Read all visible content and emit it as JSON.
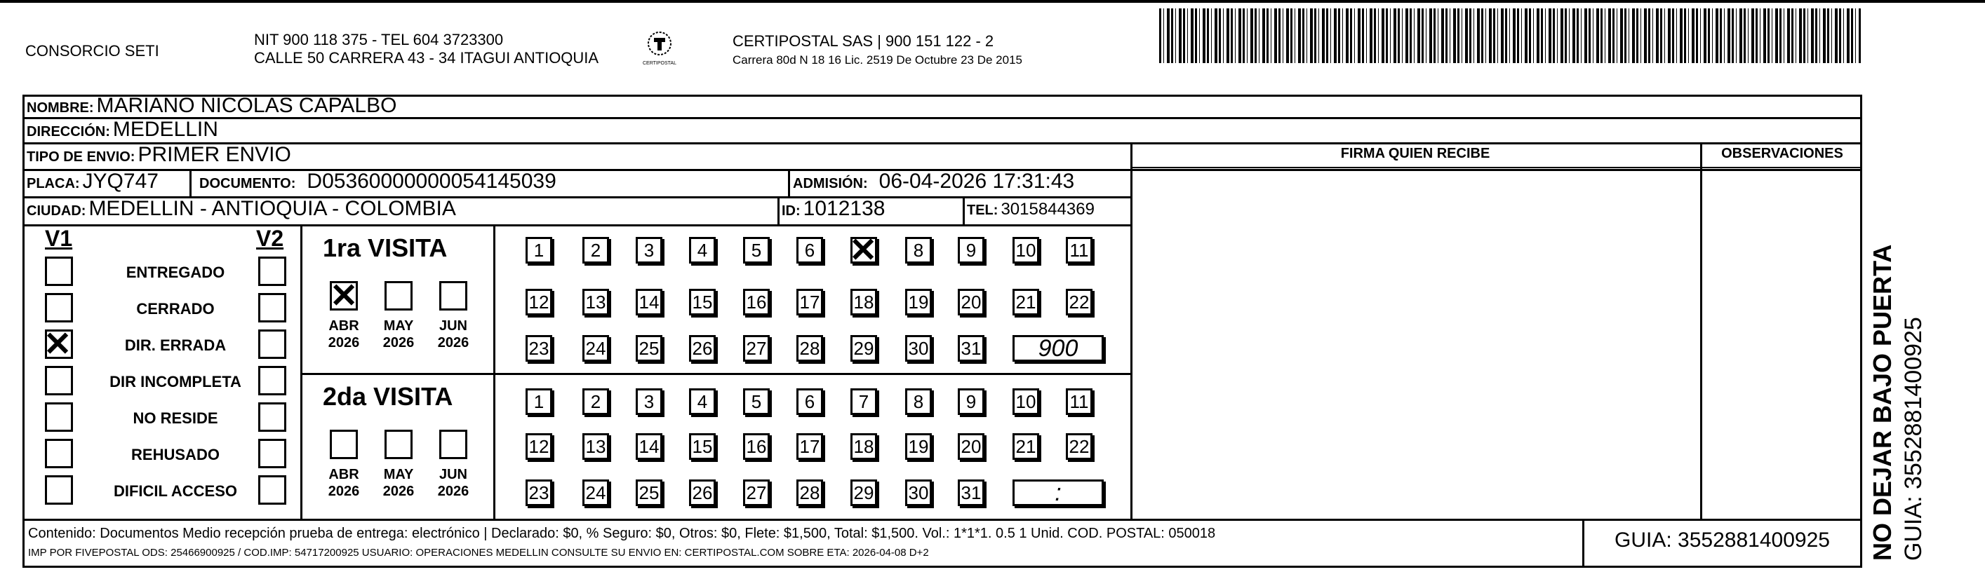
{
  "header": {
    "company": "CONSORCIO SETI",
    "nit_line": "NIT 900 118 375 - TEL 604 3723300",
    "address_line": "CALLE 50 CARRERA 43 - 34 ITAGUI ANTIOQUIA",
    "logo_text": "CERTIPOSTAL",
    "carrier_line": "CERTIPOSTAL SAS | 900 151 122 - 2",
    "license_line": "Carrera 80d N 18 16  Lic. 2519 De Octubre 23 De 2015"
  },
  "fields": {
    "nombre_label": "NOMBRE:",
    "nombre": "MARIANO NICOLAS CAPALBO",
    "direccion_label": "DIRECCIÓN:",
    "direccion": "MEDELLIN",
    "tipo_label": "TIPO DE ENVIO:",
    "tipo": "PRIMER ENVIO",
    "placa_label": "PLACA:",
    "placa": "JYQ747",
    "documento_label": "DOCUMENTO:",
    "documento": "D05360000000054145039",
    "admision_label": "ADMISIÓN:",
    "admision": "06-04-2026 17:31:43",
    "ciudad_label": "CIUDAD:",
    "ciudad": "MEDELLIN - ANTIOQUIA - COLOMBIA",
    "id_label": "ID:",
    "id": "1012138",
    "tel_label": "TEL:",
    "tel": "3015844369"
  },
  "firma_header": "FIRMA QUIEN RECIBE",
  "observaciones_header": "OBSERVACIONES",
  "v1_label": "V1",
  "v2_label": "V2",
  "statuses": [
    "ENTREGADO",
    "CERRADO",
    "DIR. ERRADA",
    "DIR INCOMPLETA",
    "NO RESIDE",
    "REHUSADO",
    "DIFICIL ACCESO"
  ],
  "v1_checked": "DIR. ERRADA",
  "visits": [
    {
      "title": "1ra VISITA",
      "months": [
        {
          "m": "ABR",
          "y": "2026"
        },
        {
          "m": "MAY",
          "y": "2026"
        },
        {
          "m": "JUN",
          "y": "2026"
        }
      ],
      "checked_month": "ABR",
      "checked_day": "7",
      "handwritten": "900",
      "time_box": ""
    },
    {
      "title": "2da VISITA",
      "months": [
        {
          "m": "ABR",
          "y": "2026"
        },
        {
          "m": "MAY",
          "y": "2026"
        },
        {
          "m": "JUN",
          "y": "2026"
        }
      ],
      "checked_month": "",
      "checked_day": "",
      "handwritten": "",
      "time_box": ":"
    }
  ],
  "days": [
    [
      "1",
      "2",
      "3",
      "4",
      "5",
      "6",
      "7",
      "8",
      "9",
      "10",
      "11"
    ],
    [
      "12",
      "13",
      "14",
      "15",
      "16",
      "17",
      "18",
      "19",
      "20",
      "21",
      "22"
    ],
    [
      "23",
      "24",
      "25",
      "26",
      "27",
      "28",
      "29",
      "30",
      "31"
    ]
  ],
  "footer": {
    "contenido": "Contenido: Documentos Medio recepción prueba de entrega: electrónico | Declarado: $0, % Seguro: $0, Otros: $0, Flete: $1,500, Total: $1,500. Vol.: 1*1*1. 0.5  1 Unid. COD. POSTAL: 050018",
    "imp": "IMP POR FIVEPOSTAL ODS: 25466900925 / COD.IMP: 54717200925 USUARIO: OPERACIONES MEDELLIN CONSULTE SU ENVIO EN: CERTIPOSTAL.COM SOBRE ETA: 2026-04-08 D+2",
    "guia": "GUIA: 3552881400925"
  },
  "side": {
    "warning": "NO DEJAR BAJO PUERTA",
    "guia": "GUIA: 3552881400925"
  },
  "mark_icon": "x-mark-icon"
}
